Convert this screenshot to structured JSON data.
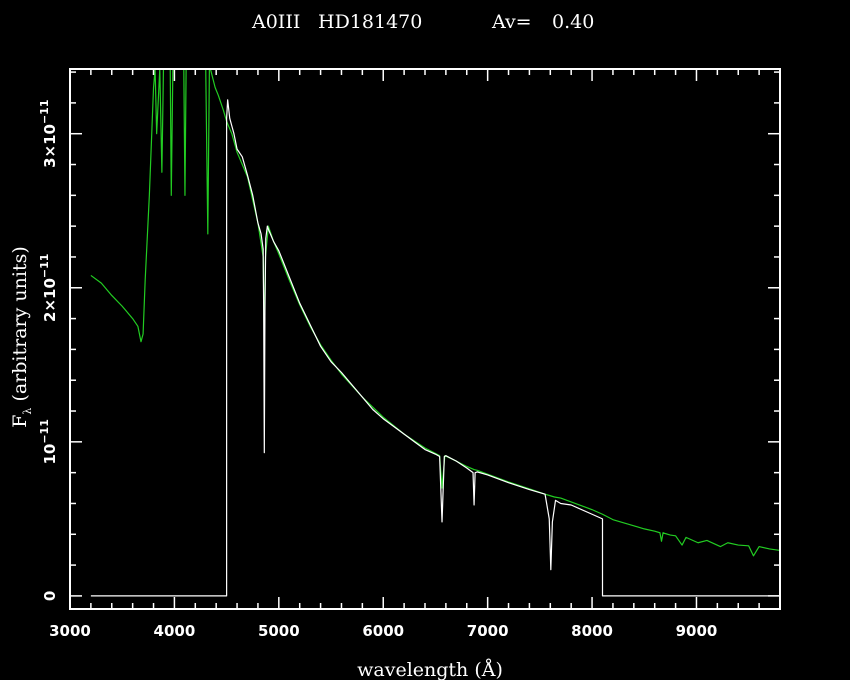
{
  "header": {
    "spectral_type": "A0III",
    "star": "HD181470",
    "av_label": "Av=",
    "av_value": "0.40"
  },
  "colors": {
    "background": "#000000",
    "frame": "#ffffff",
    "observed": "#ffffff",
    "model": "#22cc22"
  },
  "chart_data": {
    "type": "line",
    "title": "A0III   HD181470        Av=   0.40",
    "xlabel": "wavelength (Å)",
    "ylabel": "F_λ (arbitrary units)",
    "ylabel_main": "F",
    "ylabel_sub": "λ",
    "ylabel_rest": " (arbitrary units)",
    "xlim": [
      3000,
      9800
    ],
    "ylim": [
      -8.5e-13,
      3.42e-11
    ],
    "grid": false,
    "legend": "none",
    "x_ticks": [
      {
        "value": 3000,
        "label": "3000"
      },
      {
        "value": 4000,
        "label": "4000"
      },
      {
        "value": 5000,
        "label": "5000"
      },
      {
        "value": 6000,
        "label": "6000"
      },
      {
        "value": 7000,
        "label": "7000"
      },
      {
        "value": 8000,
        "label": "8000"
      },
      {
        "value": 9000,
        "label": "9000"
      }
    ],
    "y_ticks": [
      {
        "value": 0,
        "label": "0",
        "mant": "",
        "exp": ""
      },
      {
        "value": 1e-11,
        "label": "10^-11",
        "mant": "10",
        "exp": "−11"
      },
      {
        "value": 2e-11,
        "label": "2×10^-11",
        "mant": "2×10",
        "exp": "−11"
      },
      {
        "value": 3e-11,
        "label": "3×10^-11",
        "mant": "3×10",
        "exp": "−11"
      }
    ],
    "series": [
      {
        "name": "",
        "role": "model",
        "x": [
          3200,
          3300,
          3400,
          3500,
          3600,
          3650,
          3680,
          3700,
          3720,
          3760,
          3800,
          3815,
          3830,
          3860,
          3880,
          3895,
          3910,
          3930,
          3960,
          3970,
          3985,
          4020,
          4060,
          4090,
          4101,
          4112,
          4150,
          4200,
          4260,
          4300,
          4320,
          4335,
          4345,
          4360,
          4390,
          4420,
          4470,
          4500,
          4550,
          4600,
          4700,
          4800,
          4850,
          4861,
          4872,
          4900,
          4950,
          5000,
          5100,
          5200,
          5300,
          5400,
          5500,
          5600,
          5800,
          6000,
          6200,
          6400,
          6500,
          6540,
          6563,
          6590,
          6700,
          6800,
          6870,
          6900,
          7000,
          7200,
          7400,
          7550,
          7600,
          7640,
          7700,
          7800,
          8000,
          8100,
          8200,
          8400,
          8500,
          8600,
          8650,
          8665,
          8680,
          8700,
          8750,
          8800,
          8862,
          8900,
          9015,
          9100,
          9229,
          9300,
          9400,
          9500,
          9546,
          9600,
          9700,
          9800
        ],
        "y": [
          2.08e-11,
          2.03e-11,
          1.95e-11,
          1.88e-11,
          1.8e-11,
          1.75e-11,
          1.65e-11,
          1.7e-11,
          2.05e-11,
          2.6e-11,
          3.3e-11,
          3.42e-11,
          3e-11,
          3.42e-11,
          2.75e-11,
          3.42e-11,
          3.42e-11,
          3.42e-11,
          3.42e-11,
          2.6e-11,
          3.42e-11,
          3.42e-11,
          3.42e-11,
          3.42e-11,
          2.6e-11,
          3.42e-11,
          3.42e-11,
          3.42e-11,
          3.42e-11,
          3.42e-11,
          2.35e-11,
          3.42e-11,
          3.42e-11,
          3.38e-11,
          3.3e-11,
          3.25e-11,
          3.15e-11,
          3.08e-11,
          3e-11,
          2.88e-11,
          2.72e-11,
          2.42e-11,
          2.2e-11,
          1.65e-11,
          2.2e-11,
          2.4e-11,
          2.3e-11,
          2.22e-11,
          2.05e-11,
          1.89e-11,
          1.75e-11,
          1.63e-11,
          1.53e-11,
          1.44e-11,
          1.29e-11,
          1.16e-11,
          1.05e-11,
          9.6e-12,
          9.25e-12,
          9.1e-12,
          7e-12,
          9.1e-12,
          8.75e-12,
          8.4e-12,
          8.2e-12,
          8.15e-12,
          7.9e-12,
          7.4e-12,
          6.95e-12,
          6.6e-12,
          6.5e-12,
          6.42e-12,
          6.35e-12,
          6.1e-12,
          5.6e-12,
          5.3e-12,
          4.95e-12,
          4.55e-12,
          4.35e-12,
          4.2e-12,
          4.1e-12,
          3.55e-12,
          4.1e-12,
          4.05e-12,
          3.95e-12,
          3.9e-12,
          3.3e-12,
          3.8e-12,
          3.45e-12,
          3.6e-12,
          3.2e-12,
          3.45e-12,
          3.3e-12,
          3.25e-12,
          2.6e-12,
          3.2e-12,
          3.05e-12,
          2.95e-12
        ]
      },
      {
        "name": "",
        "role": "observed",
        "x": [
          3200,
          4500,
          4500,
          4510,
          4530,
          4550,
          4570,
          4600,
          4650,
          4700,
          4750,
          4800,
          4830,
          4850,
          4855,
          4861,
          4867,
          4875,
          4890,
          4900,
          4950,
          5000,
          5100,
          5200,
          5300,
          5400,
          5500,
          5600,
          5800,
          5900,
          6000,
          6200,
          6300,
          6400,
          6500,
          6540,
          6563,
          6585,
          6600,
          6700,
          6800,
          6860,
          6870,
          6880,
          6900,
          7000,
          7200,
          7400,
          7550,
          7590,
          7605,
          7620,
          7650,
          7700,
          7800,
          8000,
          8100,
          8100,
          9800
        ],
        "y": [
          0,
          0,
          3.1e-11,
          3.22e-11,
          3.1e-11,
          3.05e-11,
          3e-11,
          2.9e-11,
          2.85e-11,
          2.73e-11,
          2.6e-11,
          2.42e-11,
          2.35e-11,
          2.25e-11,
          1.85e-11,
          9.3e-12,
          1.85e-11,
          2.32e-11,
          2.4e-11,
          2.38e-11,
          2.3e-11,
          2.24e-11,
          2.07e-11,
          1.9e-11,
          1.76e-11,
          1.62e-11,
          1.52e-11,
          1.45e-11,
          1.29e-11,
          1.21e-11,
          1.15e-11,
          1.05e-11,
          1e-11,
          9.5e-12,
          9.2e-12,
          9.05e-12,
          4.8e-12,
          9.05e-12,
          9.1e-12,
          8.75e-12,
          8.3e-12,
          8e-12,
          5.9e-12,
          8e-12,
          8.05e-12,
          7.85e-12,
          7.35e-12,
          6.9e-12,
          6.6e-12,
          5e-12,
          1.7e-12,
          4.8e-12,
          6.2e-12,
          6e-12,
          5.9e-12,
          5.3e-12,
          5e-12,
          0,
          0
        ]
      }
    ]
  }
}
